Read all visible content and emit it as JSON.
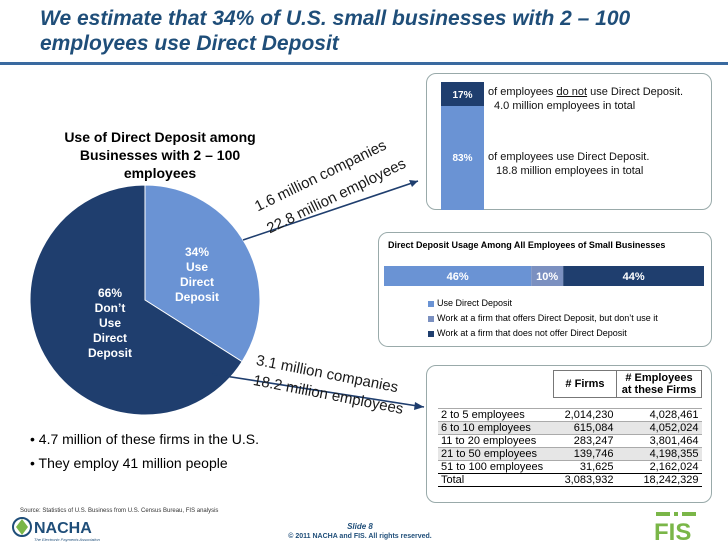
{
  "slide_title": "We estimate that 34% of U.S. small businesses with 2 – 100 employees use Direct Deposit",
  "pie_title": "Use of Direct Deposit among Businesses with 2 – 100 employees",
  "pie_labels": {
    "small": [
      "34%",
      "Use",
      "Direct",
      "Deposit"
    ],
    "large": [
      "66%",
      "Don’t",
      "Use",
      "Direct",
      "Deposit"
    ]
  },
  "callout_small": [
    "1.6 million companies",
    "22.8 million employees"
  ],
  "callout_large": [
    "3.1 million companies",
    "18.2 million employees"
  ],
  "stacked_pct": {
    "top": "17%",
    "bottom": "83%"
  },
  "stacked_text": {
    "top_pre": "of employees ",
    "top_underline": "do not",
    "top_post": " use Direct Deposit.",
    "top_line2": "4.0 million employees in total",
    "bottom_line1": "of employees use Direct Deposit.",
    "bottom_line2": "18.8 million employees in total"
  },
  "usage_title": "Direct Deposit Usage Among All Employees of Small Businesses",
  "usage_labels": [
    "46%",
    "10%",
    "44%"
  ],
  "legend": [
    "Use Direct Deposit",
    "Work at a firm that offers Direct Deposit, but don’t use it",
    "Work at a firm that does not offer Direct Deposit"
  ],
  "table": {
    "headers": [
      "# Firms",
      "# Employees at these Firms"
    ],
    "rows": [
      [
        "2 to 5 employees",
        "2,014,230",
        "4,028,461"
      ],
      [
        "6 to 10 employees",
        "615,084",
        "4,052,024"
      ],
      [
        "11 to 20 employees",
        "283,247",
        "3,801,464"
      ],
      [
        "21 to 50 employees",
        "139,746",
        "4,198,355"
      ],
      [
        "51 to 100 employees",
        "31,625",
        "2,162,024"
      ],
      [
        "Total",
        "3,083,932",
        "18,242,329"
      ]
    ]
  },
  "bullets": [
    "4.7 million of these firms in the U.S.",
    "They employ 41 million people"
  ],
  "source": "Source: Statistics of U.S. Business from U.S. Census Bureau, FIS analysis",
  "logos": {
    "nacha": "NACHA",
    "nacha_tagline": "The Electronic Payments Association",
    "fis": "FIS"
  },
  "slide_number": "Slide 8",
  "copyright": "© 2011 NACHA and FIS. All rights reserved.",
  "colors": {
    "light_blue": "#6a93d4",
    "dark_blue": "#1f3e6e",
    "mid_blue": "#7b90c0",
    "title_blue": "#1f4e79",
    "fis_green": "#7ab648"
  },
  "chart_data": [
    {
      "type": "pie",
      "title": "Use of Direct Deposit among Businesses with 2 – 100 employees",
      "categories": [
        "Use Direct Deposit",
        "Don’t Use Direct Deposit"
      ],
      "values": [
        34,
        66
      ]
    },
    {
      "type": "bar",
      "stacked": true,
      "categories": [
        "do not use Direct Deposit",
        "use Direct Deposit"
      ],
      "values": [
        17,
        83
      ]
    },
    {
      "type": "bar",
      "stacked": true,
      "orientation": "horizontal",
      "title": "Direct Deposit Usage Among All Employees of Small Businesses",
      "series": [
        {
          "name": "Use Direct Deposit",
          "values": [
            46
          ]
        },
        {
          "name": "Work at a firm that offers Direct Deposit, but don’t use it",
          "values": [
            10
          ]
        },
        {
          "name": "Work at a firm that does not offer Direct Deposit",
          "values": [
            44
          ]
        }
      ],
      "legend": "bottom"
    },
    {
      "type": "table",
      "columns": [
        "",
        "# Firms",
        "# Employees at these Firms"
      ],
      "rows": [
        [
          "2 to 5 employees",
          2014230,
          4028461
        ],
        [
          "6 to 10 employees",
          615084,
          4052024
        ],
        [
          "11 to 20 employees",
          283247,
          3801464
        ],
        [
          "21 to 50 employees",
          139746,
          4198355
        ],
        [
          "51 to 100 employees",
          31625,
          2162024
        ],
        [
          "Total",
          3083932,
          18242329
        ]
      ]
    }
  ]
}
